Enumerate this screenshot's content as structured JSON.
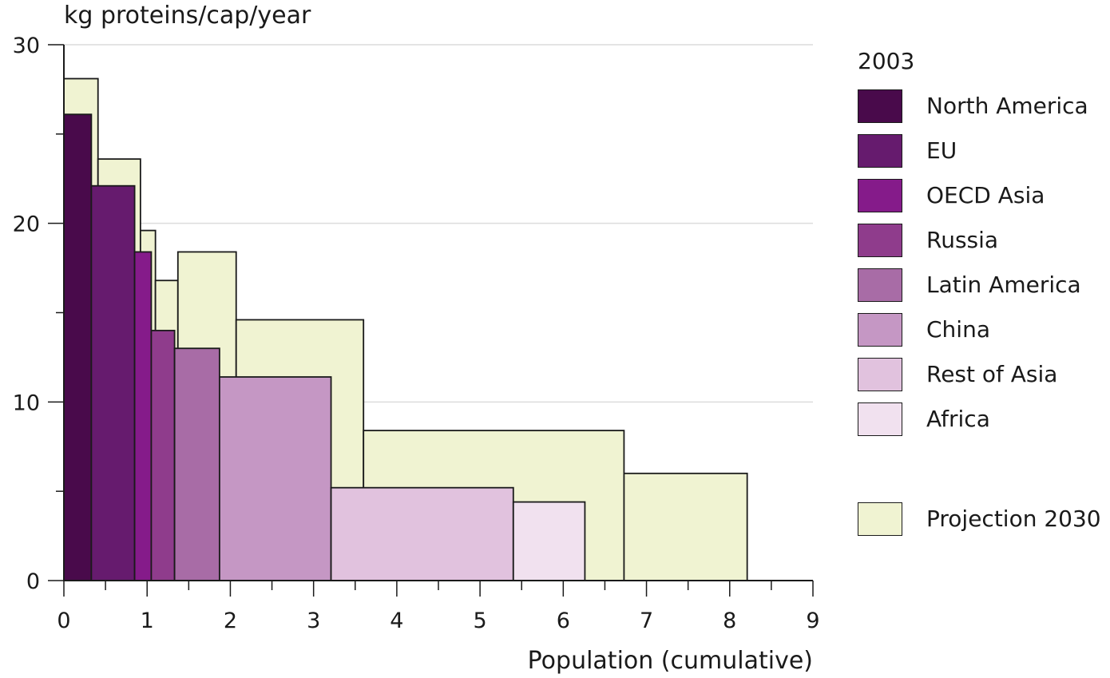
{
  "chart_data": {
    "type": "bar",
    "title": "",
    "ylabel": "kg proteins/cap/year",
    "xlabel": "Population (cumulative)",
    "xlim": [
      0,
      9
    ],
    "ylim": [
      0,
      30
    ],
    "x_ticks": [
      "0",
      "1",
      "2",
      "3",
      "4",
      "5",
      "6",
      "7",
      "8",
      "9"
    ],
    "y_ticks": [
      "0",
      "10",
      "20",
      "30"
    ],
    "grid": "horizontal",
    "legend": {
      "placement": "right",
      "title": "2003",
      "projection_label": "Projection 2030"
    },
    "series": [
      {
        "name": "2003",
        "bars": [
          {
            "region": "North America",
            "x0": 0.0,
            "x1": 0.33,
            "value": 26.1,
            "color": "#490a4b"
          },
          {
            "region": "EU",
            "x0": 0.33,
            "x1": 0.85,
            "value": 22.1,
            "color": "#661b6e"
          },
          {
            "region": "OECD Asia",
            "x0": 0.85,
            "x1": 1.05,
            "value": 18.4,
            "color": "#851b8a"
          },
          {
            "region": "Russia",
            "x0": 1.05,
            "x1": 1.33,
            "value": 14.0,
            "color": "#8f3c8c"
          },
          {
            "region": "Latin America",
            "x0": 1.33,
            "x1": 1.87,
            "value": 13.0,
            "color": "#a86ca6"
          },
          {
            "region": "China",
            "x0": 1.87,
            "x1": 3.21,
            "value": 11.4,
            "color": "#c597c4"
          },
          {
            "region": "Rest of Asia",
            "x0": 3.21,
            "x1": 5.4,
            "value": 5.2,
            "color": "#e1c2de"
          },
          {
            "region": "Africa",
            "x0": 5.4,
            "x1": 6.26,
            "value": 4.4,
            "color": "#f1e1ef"
          }
        ]
      },
      {
        "name": "Projection 2030",
        "color": "#f0f3d2",
        "bars": [
          {
            "region": "North America",
            "x0": 0.0,
            "x1": 0.41,
            "value": 28.1
          },
          {
            "region": "EU",
            "x0": 0.41,
            "x1": 0.92,
            "value": 23.6
          },
          {
            "region": "OECD Asia",
            "x0": 0.92,
            "x1": 1.1,
            "value": 19.6
          },
          {
            "region": "Russia",
            "x0": 1.1,
            "x1": 1.37,
            "value": 16.8
          },
          {
            "region": "Latin America",
            "x0": 1.37,
            "x1": 2.07,
            "value": 18.4
          },
          {
            "region": "China",
            "x0": 2.07,
            "x1": 3.6,
            "value": 14.6
          },
          {
            "region": "Rest of Asia",
            "x0": 3.6,
            "x1": 6.73,
            "value": 8.4
          },
          {
            "region": "Africa",
            "x0": 6.73,
            "x1": 8.21,
            "value": 6.0
          }
        ]
      }
    ]
  }
}
